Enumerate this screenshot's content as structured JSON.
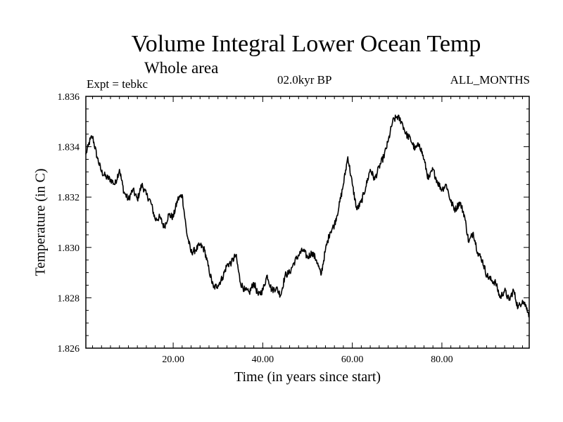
{
  "header": {
    "title": "Volume Integral Lower Ocean Temp",
    "subtitle": "Whole area",
    "experiment": "Expt = tebkc",
    "period": "02.0kyr BP",
    "months": "ALL_MONTHS"
  },
  "chart_data": {
    "type": "line",
    "title": "Volume Integral Lower Ocean Temp",
    "subtitle": "Whole area",
    "xlabel": "Time (in years since start)",
    "ylabel": "Temperature (in C)",
    "xlim": [
      0.5,
      99.5
    ],
    "ylim": [
      1.826,
      1.836
    ],
    "xticks": [
      20,
      40,
      60,
      80
    ],
    "xtick_labels": [
      "20.00",
      "40.00",
      "60.00",
      "80.00"
    ],
    "yticks": [
      1.826,
      1.828,
      1.83,
      1.832,
      1.834,
      1.836
    ],
    "ytick_labels": [
      "1.826",
      "1.828",
      "1.830",
      "1.832",
      "1.834",
      "1.836"
    ],
    "grid": false,
    "series": [
      {
        "name": "Temperature",
        "color": "#000000",
        "x": [
          0.5,
          1,
          1.5,
          2,
          3,
          4,
          5,
          6,
          7,
          8,
          9,
          10,
          11,
          12,
          13,
          14,
          15,
          16,
          17,
          18,
          19,
          20,
          21,
          22,
          23,
          24,
          25,
          26,
          27,
          28,
          29,
          30,
          31,
          32,
          33,
          34,
          35,
          36,
          37,
          38,
          39,
          40,
          41,
          42,
          43,
          44,
          45,
          46,
          47,
          48,
          49,
          50,
          51,
          52,
          53,
          54,
          55,
          56,
          57,
          58,
          59,
          60,
          61,
          62,
          63,
          64,
          65,
          66,
          67,
          68,
          69,
          70,
          71,
          72,
          73,
          74,
          75,
          76,
          77,
          78,
          79,
          80,
          81,
          82,
          83,
          84,
          85,
          86,
          87,
          88,
          89,
          90,
          91,
          92,
          93,
          94,
          95,
          96,
          97,
          98,
          99,
          99.5
        ],
        "y": [
          1.8337,
          1.834,
          1.8343,
          1.8344,
          1.8336,
          1.833,
          1.8328,
          1.8327,
          1.8325,
          1.8331,
          1.8322,
          1.8319,
          1.8323,
          1.8319,
          1.8325,
          1.8321,
          1.8318,
          1.8311,
          1.8312,
          1.8308,
          1.8313,
          1.8312,
          1.8319,
          1.8321,
          1.8306,
          1.8298,
          1.8299,
          1.8301,
          1.8299,
          1.8291,
          1.8284,
          1.8285,
          1.8288,
          1.8293,
          1.8294,
          1.8297,
          1.8286,
          1.8283,
          1.8282,
          1.8286,
          1.8281,
          1.8283,
          1.8289,
          1.8283,
          1.8284,
          1.8281,
          1.8289,
          1.829,
          1.8294,
          1.8297,
          1.8299,
          1.8296,
          1.8298,
          1.8295,
          1.8289,
          1.8299,
          1.8306,
          1.8309,
          1.8316,
          1.8325,
          1.8336,
          1.8325,
          1.8315,
          1.8318,
          1.8324,
          1.8331,
          1.8327,
          1.8332,
          1.8336,
          1.8342,
          1.835,
          1.8352,
          1.835,
          1.8345,
          1.8343,
          1.8339,
          1.8341,
          1.8335,
          1.8327,
          1.8331,
          1.8326,
          1.8323,
          1.8325,
          1.8318,
          1.8315,
          1.8318,
          1.8313,
          1.8302,
          1.8306,
          1.8298,
          1.8295,
          1.8289,
          1.8287,
          1.8286,
          1.828,
          1.8283,
          1.8279,
          1.8283,
          1.8276,
          1.8279,
          1.8276,
          1.8273
        ]
      }
    ]
  }
}
